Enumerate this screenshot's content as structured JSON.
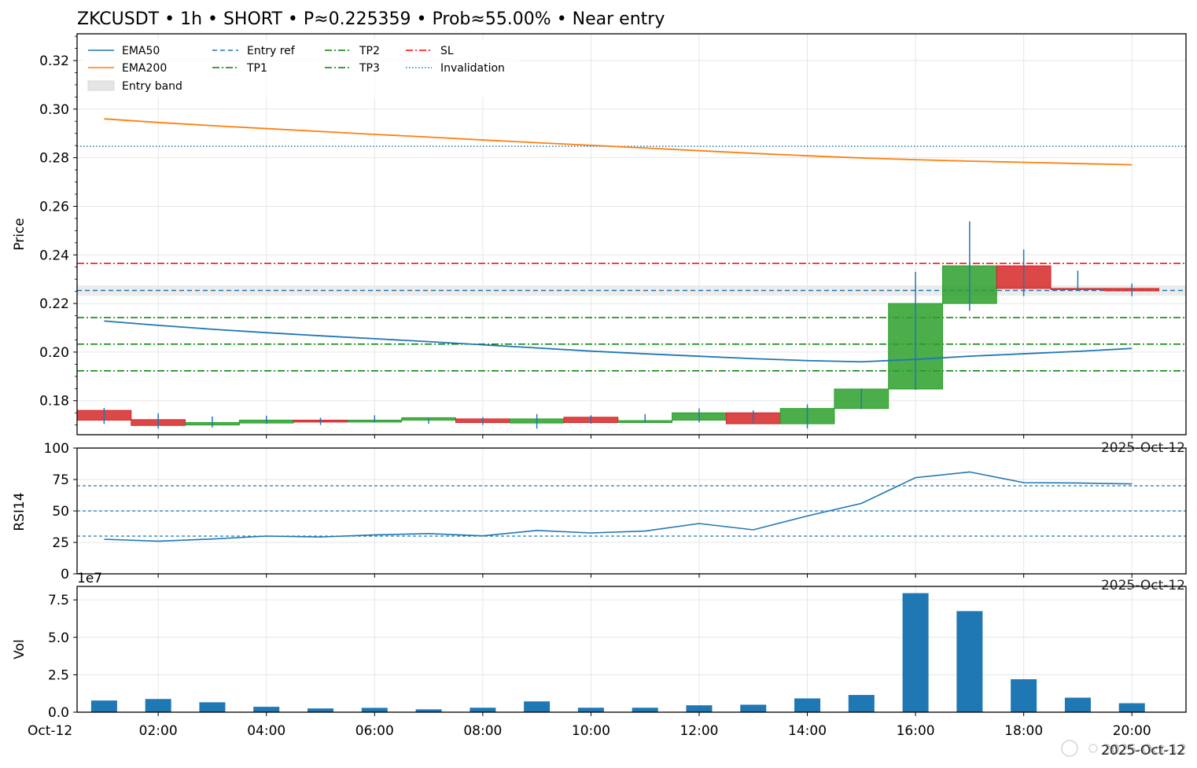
{
  "chart_data": [
    {
      "type": "candlestick",
      "title": "ZKCUSDT • 1h • SHORT • P≈0.225359 • Prob≈55.00% • Near entry",
      "ylabel": "Price",
      "ylim": [
        0.166,
        0.331
      ],
      "yticks": [
        "0.18",
        "0.20",
        "0.22",
        "0.24",
        "0.26",
        "0.28",
        "0.30",
        "0.32"
      ],
      "date_label": "2025-Oct-12",
      "x_hours": [
        1,
        2,
        3,
        4,
        5,
        6,
        7,
        8,
        9,
        10,
        11,
        12,
        13,
        14,
        15,
        16,
        17,
        18,
        19,
        20
      ],
      "candles": [
        {
          "o": 0.176,
          "h": 0.177,
          "l": 0.1705,
          "c": 0.172
        },
        {
          "o": 0.1722,
          "h": 0.1748,
          "l": 0.1685,
          "c": 0.1698
        },
        {
          "o": 0.17,
          "h": 0.1735,
          "l": 0.169,
          "c": 0.171
        },
        {
          "o": 0.1708,
          "h": 0.1738,
          "l": 0.1705,
          "c": 0.172
        },
        {
          "o": 0.172,
          "h": 0.173,
          "l": 0.17,
          "c": 0.1712
        },
        {
          "o": 0.1712,
          "h": 0.174,
          "l": 0.171,
          "c": 0.172
        },
        {
          "o": 0.172,
          "h": 0.1728,
          "l": 0.1705,
          "c": 0.173
        },
        {
          "o": 0.1725,
          "h": 0.1732,
          "l": 0.17,
          "c": 0.171
        },
        {
          "o": 0.1708,
          "h": 0.1745,
          "l": 0.1685,
          "c": 0.1725
        },
        {
          "o": 0.1732,
          "h": 0.174,
          "l": 0.1705,
          "c": 0.171
        },
        {
          "o": 0.171,
          "h": 0.1745,
          "l": 0.171,
          "c": 0.1718
        },
        {
          "o": 0.172,
          "h": 0.1768,
          "l": 0.171,
          "c": 0.175
        },
        {
          "o": 0.175,
          "h": 0.176,
          "l": 0.1705,
          "c": 0.1705
        },
        {
          "o": 0.1705,
          "h": 0.1785,
          "l": 0.1685,
          "c": 0.1768
        },
        {
          "o": 0.1768,
          "h": 0.185,
          "l": 0.1765,
          "c": 0.1848
        },
        {
          "o": 0.1848,
          "h": 0.233,
          "l": 0.1845,
          "c": 0.22
        },
        {
          "o": 0.22,
          "h": 0.2538,
          "l": 0.217,
          "c": 0.2355
        },
        {
          "o": 0.2355,
          "h": 0.2422,
          "l": 0.223,
          "c": 0.2262
        },
        {
          "o": 0.2262,
          "h": 0.2335,
          "l": 0.2255,
          "c": 0.2258
        },
        {
          "o": 0.2262,
          "h": 0.2282,
          "l": 0.223,
          "c": 0.2252
        }
      ],
      "series": [
        {
          "name": "EMA50",
          "color": "#1f77b4",
          "values": [
            0.2128,
            0.211,
            0.2094,
            0.208,
            0.2067,
            0.2055,
            0.2043,
            0.203,
            0.2017,
            0.2004,
            0.1993,
            0.1983,
            0.1973,
            0.1965,
            0.196,
            0.197,
            0.1983,
            0.1993,
            0.2003,
            0.2015
          ]
        },
        {
          "name": "EMA200",
          "color": "#ff7f0e",
          "values": [
            0.296,
            0.2945,
            0.2932,
            0.292,
            0.2908,
            0.2896,
            0.2885,
            0.2873,
            0.2862,
            0.2851,
            0.284,
            0.2829,
            0.2818,
            0.2808,
            0.2799,
            0.2792,
            0.2786,
            0.2781,
            0.2776,
            0.2771
          ]
        }
      ],
      "hlines": [
        {
          "name": "Entry ref",
          "value": 0.225359,
          "color": "#1f77b4",
          "style": "dashed"
        },
        {
          "name": "TP1",
          "value": 0.2142,
          "color": "#008000",
          "style": "dashdot"
        },
        {
          "name": "TP2",
          "value": 0.2033,
          "color": "#008000",
          "style": "dashdot"
        },
        {
          "name": "TP3",
          "value": 0.1923,
          "color": "#008000",
          "style": "dashdot"
        },
        {
          "name": "SL",
          "value": 0.2365,
          "color": "#ff0000",
          "style": "dashdot"
        },
        {
          "name": "Invalidation",
          "value": 0.2847,
          "color": "#1f77b4",
          "style": "dotted"
        }
      ],
      "entry_band": {
        "name": "Entry band",
        "range": [
          0.2232,
          0.2275
        ],
        "color": "#e5e5e5"
      },
      "up_color": "#2ca02c",
      "down_color": "#d62728",
      "legend_position": "upper-left"
    },
    {
      "type": "line",
      "ylabel": "RSI14",
      "ylim": [
        0,
        100
      ],
      "yticks": [
        "0",
        "25",
        "50",
        "75",
        "100"
      ],
      "date_label": "2025-Oct-12",
      "x_hours": [
        1,
        2,
        3,
        4,
        5,
        6,
        7,
        8,
        9,
        10,
        11,
        12,
        13,
        14,
        15,
        16,
        17,
        18,
        19,
        20
      ],
      "series": [
        {
          "color": "#1f77b4",
          "values": [
            27.5,
            26.0,
            27.7,
            30.0,
            29.3,
            31.0,
            32.0,
            30.2,
            34.5,
            32.5,
            34.0,
            40.0,
            35.0,
            46.0,
            56.0,
            76.5,
            81.0,
            72.5,
            72.2,
            71.5
          ]
        }
      ],
      "reference_lines": [
        30,
        50,
        70
      ]
    },
    {
      "type": "bar",
      "ylabel": "Vol",
      "scale_label": "1e7",
      "ylim": [
        0,
        8.4
      ],
      "yticks": [
        "0.0",
        "2.5",
        "5.0",
        "7.5"
      ],
      "x_hours": [
        1,
        2,
        3,
        4,
        5,
        6,
        7,
        8,
        9,
        10,
        11,
        12,
        13,
        14,
        15,
        16,
        17,
        18,
        19,
        20
      ],
      "values": [
        0.78,
        0.88,
        0.66,
        0.36,
        0.25,
        0.29,
        0.19,
        0.3,
        0.72,
        0.3,
        0.3,
        0.46,
        0.5,
        0.92,
        1.15,
        7.95,
        6.75,
        2.2,
        0.97,
        0.6
      ],
      "bar_color": "#1f77b4",
      "xticks": [
        "Oct-12",
        "02:00",
        "04:00",
        "06:00",
        "08:00",
        "10:00",
        "12:00",
        "14:00",
        "16:00",
        "18:00",
        "20:00"
      ],
      "date_label": "2025-Oct-12"
    }
  ],
  "overlay": {
    "watermark_label": "2025-Oct-12"
  }
}
